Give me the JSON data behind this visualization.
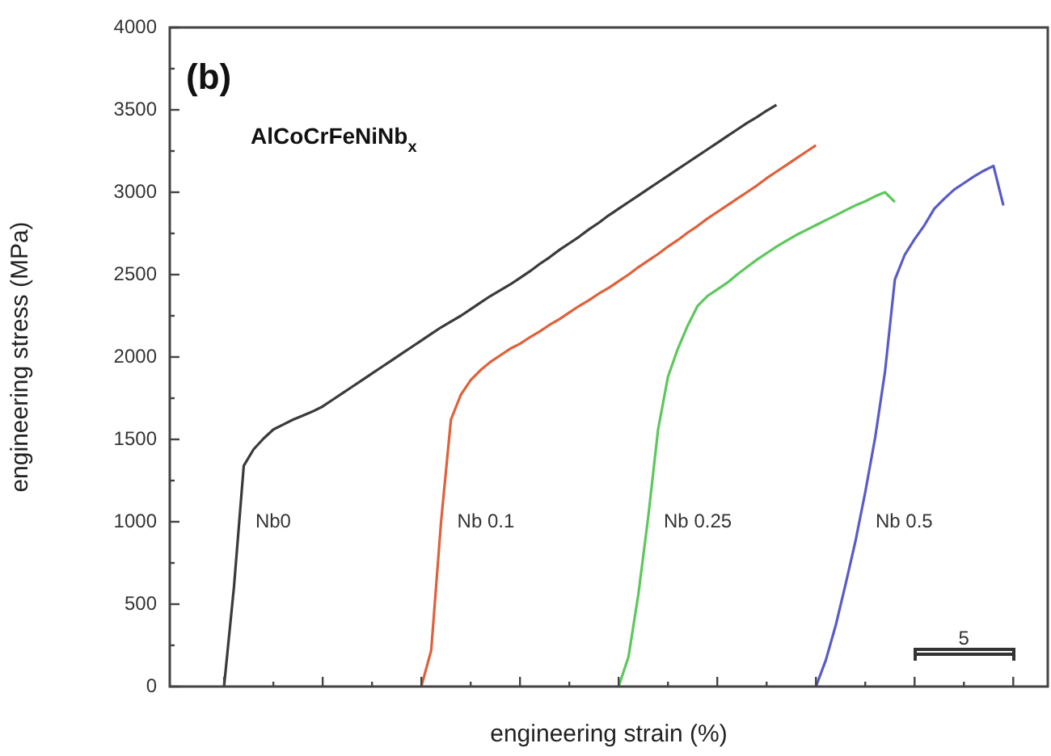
{
  "chart_data": {
    "type": "line",
    "xlabel": "engineering strain (%)",
    "ylabel": "engineering stress (MPa)",
    "annotations": [
      "(b)",
      "AlCoCrFeNiNb$_{x}$",
      "5"
    ],
    "categories": [
      null,
      null,
      null,
      null,
      null,
      null,
      null,
      null,
      null,
      null,
      null,
      null,
      null,
      null,
      null,
      null,
      null,
      null,
      null,
      null,
      null,
      null,
      null,
      null,
      null,
      null,
      null,
      null,
      null,
      null,
      null,
      null,
      null,
      null,
      null,
      null,
      null,
      null,
      null,
      null,
      null,
      null,
      null,
      null,
      null,
      null,
      null,
      null,
      null,
      null,
      null,
      null,
      null,
      null,
      null,
      null,
      null,
      null,
      null,
      null,
      null,
      null,
      null,
      null,
      null,
      null,
      null,
      null,
      null,
      null,
      null,
      null,
      null,
      null,
      null,
      null,
      null,
      null,
      null,
      null,
      null,
      null,
      null,
      null,
      null,
      null,
      null,
      null,
      null
    ],
    "ylim": [
      0,
      4000
    ],
    "yticks": [
      0,
      {
        "value": 250,
        "label": null
      },
      500,
      {
        "value": 750,
        "label": null
      },
      1000,
      {
        "value": 1250,
        "label": null
      },
      1500,
      {
        "value": 1750,
        "label": null
      },
      2000,
      {
        "value": 2250,
        "label": null
      },
      2500,
      {
        "value": 2750,
        "label": null
      },
      3000,
      {
        "value": 3250,
        "label": null
      },
      3500,
      {
        "value": 3750,
        "label": null
      },
      4000
    ],
    "tick_labels": "y",
    "grid": false,
    "legend": false,
    "marker": "none",
    "line_style": "solid",
    "series": [
      {
        "name": "Nb0",
        "color": "#3a3a3a",
        "values": [
          null,
          null,
          null,
          null,
          null,
          0,
          600,
          1340,
          1440,
          1505,
          1560,
          1590,
          1620,
          1645,
          1670,
          1700,
          1740,
          1780,
          1820,
          1860,
          1900,
          1940,
          1980,
          2020,
          2060,
          2100,
          2140,
          2180,
          2215,
          2250,
          2290,
          2330,
          2370,
          2405,
          2440,
          2480,
          2520,
          2565,
          2605,
          2650,
          2690,
          2730,
          2775,
          2815,
          2860,
          2900,
          2940,
          2980,
          3020,
          3060,
          3100,
          3140,
          3180,
          3220,
          3260,
          3300,
          3340,
          3380,
          3420,
          3455,
          3495,
          3530,
          null,
          null,
          null,
          null,
          null,
          null,
          null,
          null,
          null,
          null,
          null,
          null,
          null,
          null,
          null,
          null,
          null,
          null,
          null,
          null,
          null,
          null,
          null,
          null,
          null,
          null,
          null
        ]
      },
      {
        "name": "Nb 0.1",
        "color": "#e0603a",
        "values": [
          null,
          null,
          null,
          null,
          null,
          null,
          null,
          null,
          null,
          null,
          null,
          null,
          null,
          null,
          null,
          null,
          null,
          null,
          null,
          null,
          null,
          null,
          null,
          null,
          null,
          0,
          220,
          1000,
          1620,
          1770,
          1860,
          1920,
          1970,
          2010,
          2050,
          2080,
          2120,
          2155,
          2195,
          2230,
          2270,
          2310,
          2345,
          2385,
          2420,
          2460,
          2500,
          2545,
          2585,
          2625,
          2670,
          2710,
          2755,
          2795,
          2840,
          2880,
          2920,
          2960,
          3000,
          3040,
          3085,
          3125,
          3165,
          3205,
          3245,
          3285,
          null,
          null,
          null,
          null,
          null,
          null,
          null,
          null,
          null,
          null,
          null,
          null,
          null,
          null,
          null,
          null,
          null,
          null,
          null,
          null,
          null,
          null,
          null
        ]
      },
      {
        "name": "Nb 0.25",
        "color": "#5cc85c",
        "values": [
          null,
          null,
          null,
          null,
          null,
          null,
          null,
          null,
          null,
          null,
          null,
          null,
          null,
          null,
          null,
          null,
          null,
          null,
          null,
          null,
          null,
          null,
          null,
          null,
          null,
          null,
          null,
          null,
          null,
          null,
          null,
          null,
          null,
          null,
          null,
          null,
          null,
          null,
          null,
          null,
          null,
          null,
          null,
          null,
          null,
          0,
          180,
          560,
          1030,
          1560,
          1880,
          2050,
          2190,
          2310,
          2370,
          2410,
          2450,
          2500,
          2545,
          2590,
          2630,
          2670,
          2705,
          2740,
          2770,
          2800,
          2830,
          2860,
          2890,
          2920,
          2945,
          2975,
          3000,
          2940,
          null,
          null,
          null,
          null,
          null,
          null,
          null,
          null,
          null,
          null,
          null,
          null,
          null,
          null,
          null
        ]
      },
      {
        "name": "Nb 0.5",
        "color": "#5a5ac8",
        "values": [
          null,
          null,
          null,
          null,
          null,
          null,
          null,
          null,
          null,
          null,
          null,
          null,
          null,
          null,
          null,
          null,
          null,
          null,
          null,
          null,
          null,
          null,
          null,
          null,
          null,
          null,
          null,
          null,
          null,
          null,
          null,
          null,
          null,
          null,
          null,
          null,
          null,
          null,
          null,
          null,
          null,
          null,
          null,
          null,
          null,
          null,
          null,
          null,
          null,
          null,
          null,
          null,
          null,
          null,
          null,
          null,
          null,
          null,
          null,
          null,
          null,
          null,
          null,
          null,
          null,
          0,
          160,
          370,
          620,
          880,
          1180,
          1510,
          1910,
          2470,
          2620,
          2715,
          2800,
          2900,
          2960,
          3015,
          3055,
          3095,
          3130,
          3160,
          2920,
          null,
          null,
          null,
          null
        ]
      }
    ]
  }
}
